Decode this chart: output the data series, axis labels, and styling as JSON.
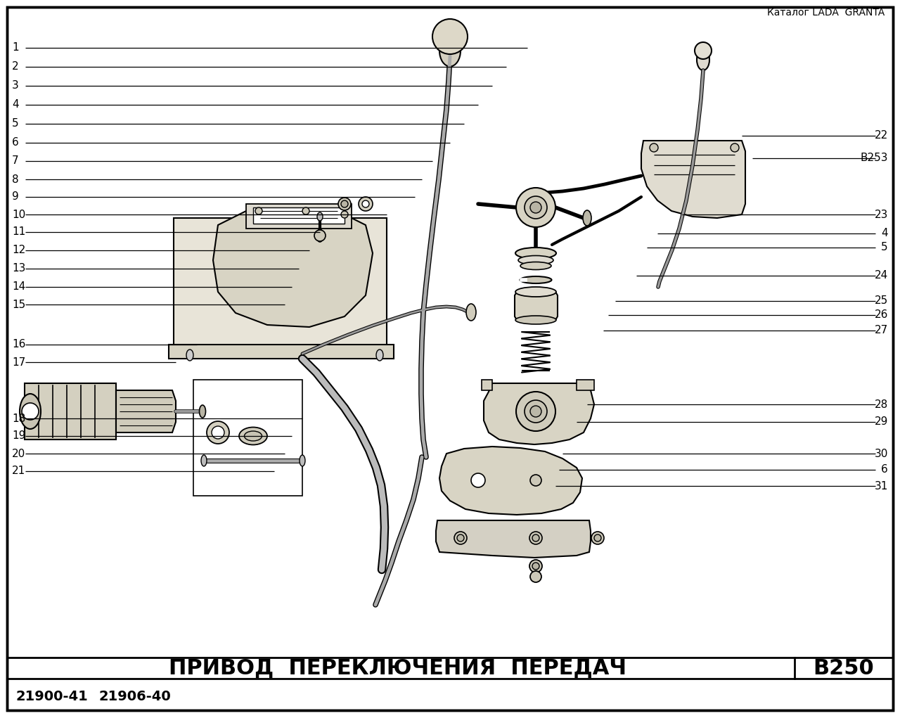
{
  "bg_color": "#ffffff",
  "catalog_text": "Каталог LADA  GRANTA",
  "title_text": "ПРИВОД  ПЕРЕКЛЮЧЕНИЯ  ПЕРЕДАЧ",
  "page_code": "В250",
  "model1": "21900-41",
  "model2": "21906-40",
  "left_labels": [
    "1",
    "2",
    "3",
    "4",
    "5",
    "6",
    "7",
    "8",
    "9",
    "10",
    "11",
    "12",
    "13",
    "14",
    "15",
    "16",
    "17",
    "18",
    "19",
    "20",
    "21"
  ],
  "left_label_ypx": [
    68,
    95,
    122,
    149,
    176,
    203,
    229,
    255,
    280,
    305,
    330,
    356,
    382,
    408,
    433,
    490,
    515,
    595,
    620,
    645,
    670
  ],
  "left_line_endx": [
    750,
    720,
    700,
    680,
    660,
    640,
    615,
    600,
    590,
    550,
    455,
    440,
    425,
    415,
    405,
    280,
    250,
    430,
    415,
    405,
    390
  ],
  "right_labels": [
    "22",
    "B253",
    "23",
    "4",
    "5",
    "24",
    "25",
    "26",
    "27",
    "28",
    "29",
    "30",
    "6",
    "31"
  ],
  "right_label_ypx": [
    193,
    225,
    305,
    332,
    352,
    392,
    428,
    448,
    470,
    575,
    600,
    645,
    668,
    691
  ],
  "right_line_startx": [
    1055,
    1070,
    970,
    935,
    920,
    905,
    875,
    865,
    858,
    835,
    820,
    800,
    795,
    790
  ]
}
